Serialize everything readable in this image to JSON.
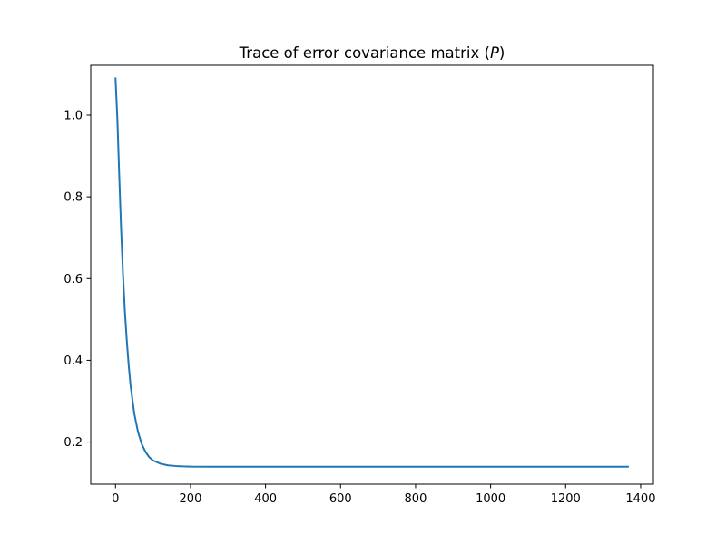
{
  "chart_data": {
    "type": "line",
    "title": "Trace of error covariance matrix (P)",
    "title_parts": {
      "prefix": "Trace of error covariance matrix (",
      "variable": "P",
      "suffix": ")"
    },
    "xlabel": "",
    "ylabel": "",
    "xlim": [
      -66,
      1434
    ],
    "ylim": [
      0.097,
      1.122
    ],
    "x_ticks": [
      0,
      200,
      400,
      600,
      800,
      1000,
      1200,
      1400
    ],
    "y_ticks": [
      0.2,
      0.4,
      0.6,
      0.8,
      1.0
    ],
    "x_tick_labels": [
      "0",
      "200",
      "400",
      "600",
      "800",
      "1000",
      "1200",
      "1400"
    ],
    "y_tick_labels": [
      "0.2",
      "0.4",
      "0.6",
      "0.8",
      "1.0"
    ],
    "grid": false,
    "legend": "none",
    "series": [
      {
        "color": "#1f77b4",
        "x": [
          0,
          5,
          10,
          15,
          20,
          25,
          30,
          35,
          40,
          50,
          60,
          70,
          80,
          90,
          100,
          120,
          140,
          160,
          180,
          200,
          250,
          300,
          400,
          500,
          600,
          700,
          800,
          900,
          1000,
          1100,
          1200,
          1300,
          1366
        ],
        "y": [
          1.09,
          0.99,
          0.85,
          0.72,
          0.61,
          0.52,
          0.45,
          0.39,
          0.34,
          0.27,
          0.225,
          0.195,
          0.176,
          0.163,
          0.155,
          0.147,
          0.143,
          0.1415,
          0.1405,
          0.14,
          0.1398,
          0.1397,
          0.1397,
          0.1397,
          0.1397,
          0.1397,
          0.1397,
          0.1397,
          0.1397,
          0.1397,
          0.1397,
          0.1397,
          0.1397
        ]
      }
    ]
  }
}
